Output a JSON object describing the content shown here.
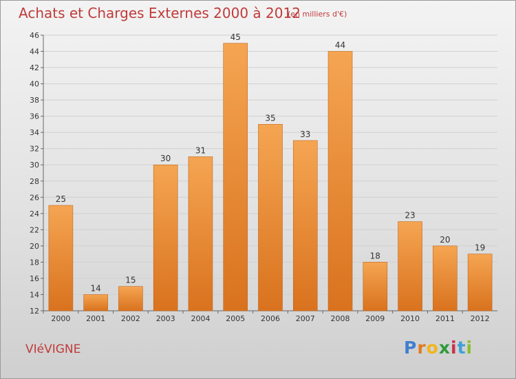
{
  "header": {
    "title": "Achats et Charges Externes 2000 à 2012",
    "subtitle": "(en milliers d'€)"
  },
  "footer": {
    "commune": "VIéVIGNE",
    "brand": "Proxiti",
    "brand_letters": [
      {
        "ch": "P",
        "color": "#3f7fd0"
      },
      {
        "ch": "r",
        "color": "#e07b1f"
      },
      {
        "ch": "o",
        "color": "#f2b51c"
      },
      {
        "ch": "x",
        "color": "#2f9a3a"
      },
      {
        "ch": "i",
        "color": "#c9304a"
      },
      {
        "ch": "t",
        "color": "#3fa0d8"
      },
      {
        "ch": "i",
        "color": "#8bbf2f"
      }
    ]
  },
  "colors": {
    "bar_top": "#f5a552",
    "bar_bottom": "#d9721e",
    "bar_stroke": "#c0661b",
    "grid": "#d0d0d0",
    "axis": "#666666",
    "title": "#c03a3a"
  },
  "chart_data": {
    "type": "bar",
    "categories": [
      "2000",
      "2001",
      "2002",
      "2003",
      "2004",
      "2005",
      "2006",
      "2007",
      "2008",
      "2009",
      "2010",
      "2011",
      "2012"
    ],
    "values": [
      25,
      14,
      15,
      30,
      31,
      45,
      35,
      33,
      44,
      18,
      23,
      20,
      19
    ],
    "title": "Achats et Charges Externes 2000 à 2012",
    "xlabel": "",
    "ylabel": "",
    "ylim": [
      12,
      46
    ],
    "ytick_step": 2,
    "grid": true,
    "legend": "none"
  }
}
